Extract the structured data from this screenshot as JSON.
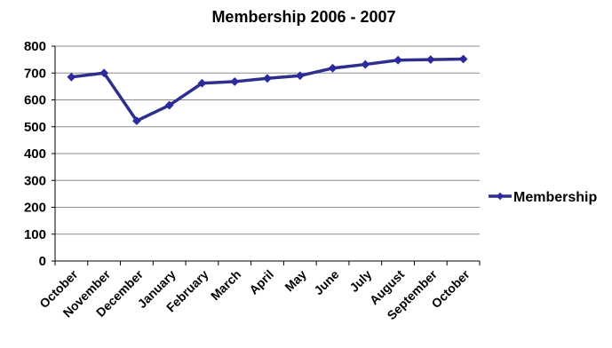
{
  "chart_data": {
    "type": "line",
    "title": "Membership 2006 - 2007",
    "categories": [
      "October",
      "November",
      "December",
      "January",
      "February",
      "March",
      "April",
      "May",
      "June",
      "July",
      "August",
      "September",
      "October"
    ],
    "series": [
      {
        "name": "Membership",
        "values": [
          685,
          700,
          522,
          580,
          662,
          668,
          680,
          690,
          718,
          732,
          748,
          750,
          752
        ]
      }
    ],
    "ylim": [
      0,
      800
    ],
    "yticks": [
      "0",
      "100",
      "200",
      "300",
      "400",
      "500",
      "600",
      "700",
      "800"
    ],
    "grid": true,
    "legend_position": "right",
    "colors": {
      "series": "#2E2E8C",
      "marker": "#2B2B9E",
      "grid": "#8C8C8C",
      "axis": "#000000"
    }
  }
}
